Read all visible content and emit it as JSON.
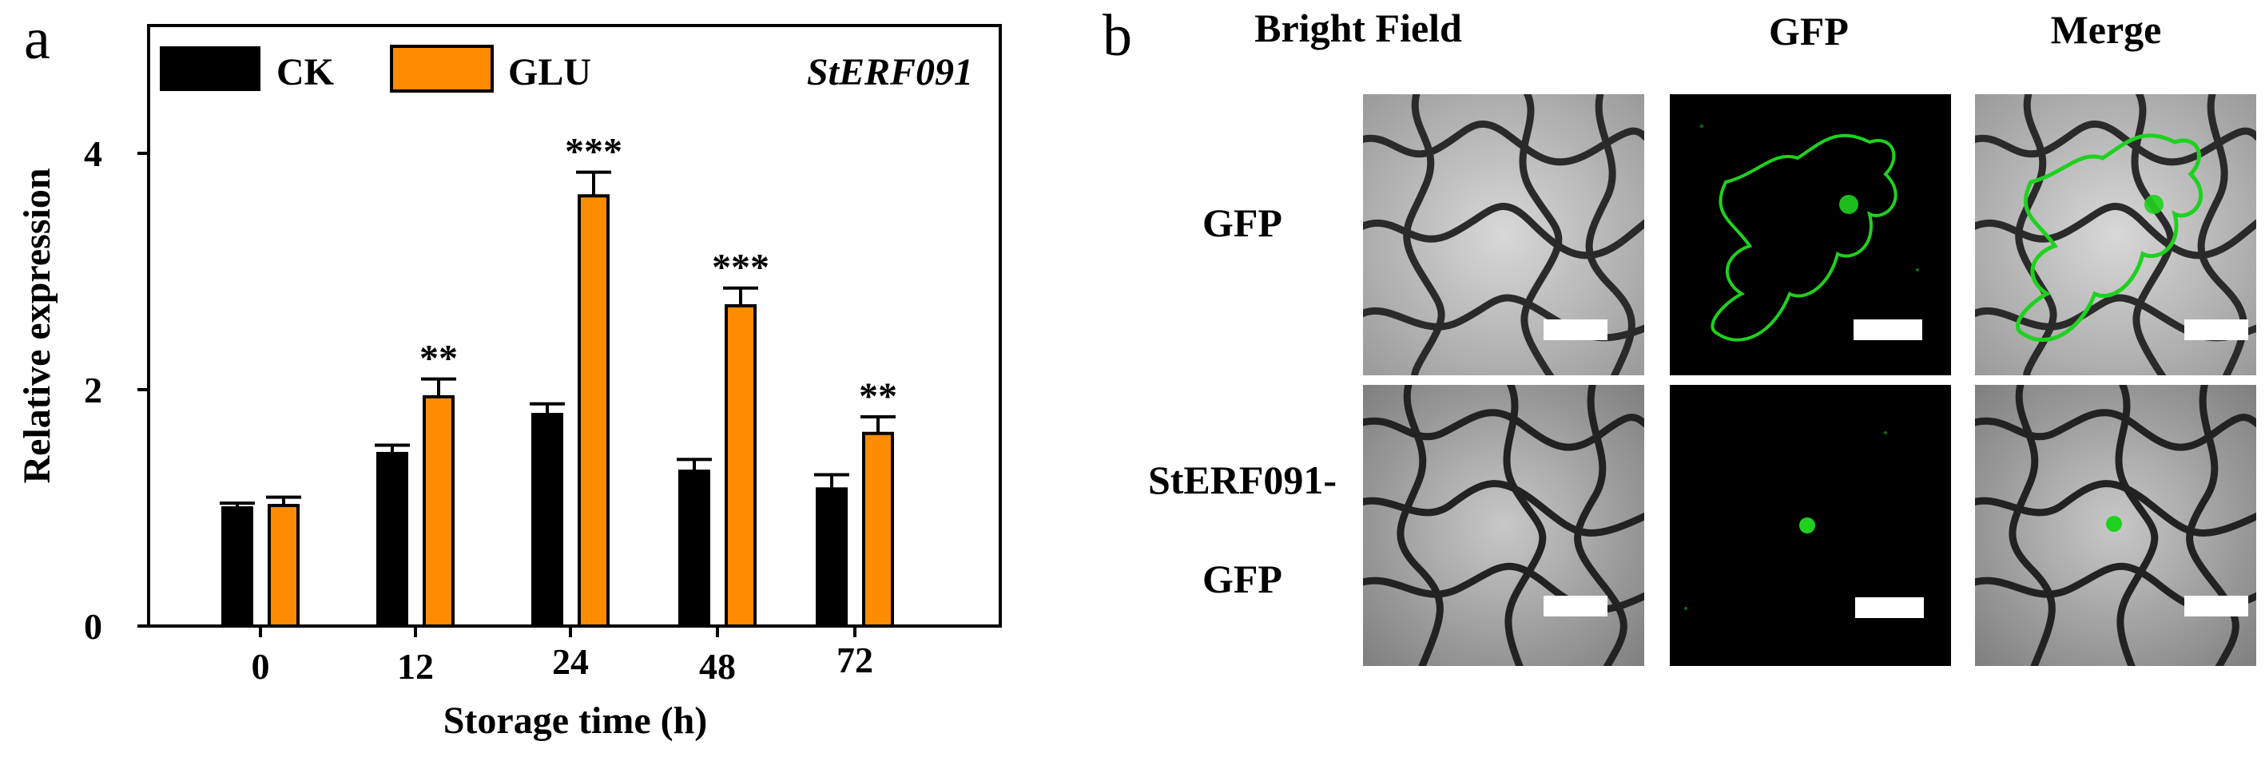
{
  "panel_a": {
    "letter": "a"
  },
  "panel_b": {
    "letter": "b",
    "columns": [
      "Bright Field",
      "GFP",
      "Merge"
    ],
    "rows": [
      {
        "lines": [
          "GFP"
        ]
      },
      {
        "lines": [
          "StERF091-",
          "GFP"
        ]
      }
    ]
  },
  "colors": {
    "ck": "#000000",
    "glu": "#ff8c00",
    "gfp_green": "#1fd11f"
  },
  "chart_data": {
    "type": "bar",
    "title": "StERF091",
    "xlabel": "Storage time (h)",
    "ylabel": "Relative expression",
    "categories": [
      "0",
      "12",
      "24",
      "48",
      "72"
    ],
    "ylim": [
      0,
      5.0
    ],
    "yticks": [
      "0",
      "2",
      "4"
    ],
    "grid": false,
    "legend_position": "top-left",
    "series": [
      {
        "name": "CK",
        "color": "#000000",
        "values": [
          1.0,
          1.46,
          1.79,
          1.31,
          1.16
        ],
        "errors": [
          0.04,
          0.07,
          0.09,
          0.1,
          0.12
        ]
      },
      {
        "name": "GLU",
        "color": "#ff8c00",
        "values": [
          1.02,
          1.94,
          3.64,
          2.71,
          1.63
        ],
        "errors": [
          0.07,
          0.15,
          0.2,
          0.15,
          0.14
        ]
      }
    ],
    "annotations": [
      "",
      "**",
      "***",
      "***",
      "**"
    ]
  }
}
